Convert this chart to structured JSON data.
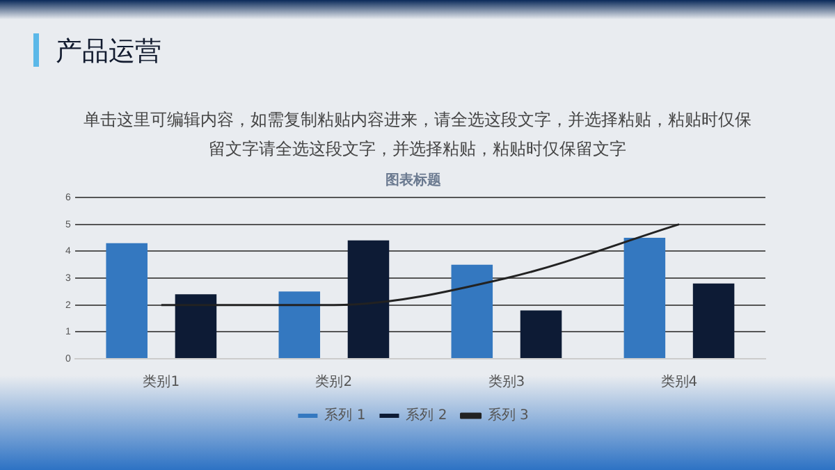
{
  "chart_data": {
    "type": "bar",
    "title": "产品运营",
    "subtitle": "单击这里可编辑内容，如需复制粘贴内容进来，请全选这段文字，并选择粘贴，粘贴时仅保留文字请全选这段文字，并选择粘贴，粘贴时仅保留文字",
    "annotations": [
      "图表标题"
    ],
    "categories": [
      "类别1",
      "类别2",
      "类别3",
      "类别4"
    ],
    "series": [
      {
        "name": "系列 1",
        "color": "#3478c0",
        "values": [
          4.3,
          2.5,
          3.5,
          4.5
        ]
      },
      {
        "name": "系列 2",
        "color": "#0d1b35",
        "values": [
          2.4,
          4.4,
          1.8,
          2.8
        ]
      },
      {
        "name": "系列 3",
        "color": "#222222",
        "type": "line",
        "values": [
          2,
          2,
          3,
          5
        ]
      }
    ],
    "ylim": [
      0,
      6
    ],
    "yticks": [
      0,
      1,
      2,
      3,
      4,
      5,
      6
    ],
    "grid": "y",
    "legend": "bottom",
    "marker": "none"
  }
}
